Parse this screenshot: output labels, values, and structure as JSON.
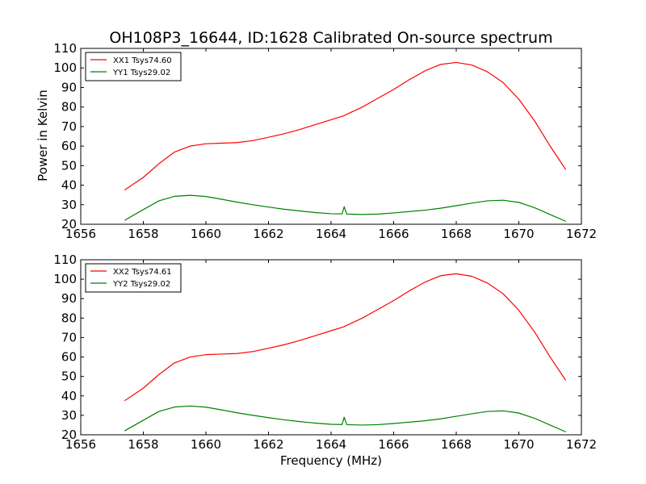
{
  "title": "OH108P3_16644, ID:1628 Calibrated On-source spectrum",
  "xlabel": "Frequency (MHz)",
  "ylabel": "Power in Kelvin",
  "colors": {
    "xx": "#ff0000",
    "yy": "#008000"
  },
  "chart_data": [
    {
      "type": "line",
      "xlim": [
        1656,
        1672
      ],
      "ylim": [
        20,
        110
      ],
      "xticks": [
        1656,
        1658,
        1660,
        1662,
        1664,
        1666,
        1668,
        1670,
        1672
      ],
      "yticks": [
        20,
        30,
        40,
        50,
        60,
        70,
        80,
        90,
        100,
        110
      ],
      "grid": false,
      "legend_position": "top-left",
      "series": [
        {
          "name": "XX1 Tsys74.60",
          "color": "#ff0000",
          "x": [
            1657.4,
            1658.0,
            1658.5,
            1659.0,
            1659.5,
            1660.0,
            1660.5,
            1661.0,
            1661.5,
            1662.0,
            1662.5,
            1663.0,
            1663.5,
            1664.0,
            1664.4,
            1665.0,
            1665.5,
            1666.0,
            1666.5,
            1667.0,
            1667.5,
            1668.0,
            1668.5,
            1669.0,
            1669.5,
            1670.0,
            1670.5,
            1671.0,
            1671.5
          ],
          "y": [
            37.5,
            44,
            51,
            57,
            60,
            61.2,
            61.5,
            61.8,
            62.8,
            64.5,
            66.3,
            68.5,
            71,
            73.5,
            75.5,
            80,
            84.5,
            89,
            94,
            98.5,
            101.8,
            102.8,
            101.5,
            98,
            92.5,
            84,
            73,
            60,
            48
          ]
        },
        {
          "name": "YY1 Tsys29.02",
          "color": "#008000",
          "x": [
            1657.4,
            1658.0,
            1658.5,
            1659.0,
            1659.5,
            1660.0,
            1660.5,
            1661.0,
            1661.5,
            1662.0,
            1662.5,
            1663.0,
            1663.5,
            1664.0,
            1664.35,
            1664.42,
            1664.5,
            1665.0,
            1665.5,
            1666.0,
            1666.5,
            1667.0,
            1667.5,
            1668.0,
            1668.5,
            1669.0,
            1669.5,
            1670.0,
            1670.5,
            1671.0,
            1671.5
          ],
          "y": [
            22,
            27.5,
            32,
            34.3,
            34.8,
            34.2,
            32.8,
            31.3,
            30,
            28.8,
            27.7,
            26.8,
            26,
            25.4,
            25.3,
            29,
            25.2,
            25,
            25.2,
            25.8,
            26.5,
            27.2,
            28.2,
            29.5,
            30.8,
            32,
            32.3,
            31.2,
            28.5,
            25,
            21.5
          ]
        }
      ]
    },
    {
      "type": "line",
      "xlim": [
        1656,
        1672
      ],
      "ylim": [
        20,
        110
      ],
      "xticks": [
        1656,
        1658,
        1660,
        1662,
        1664,
        1666,
        1668,
        1670,
        1672
      ],
      "yticks": [
        20,
        30,
        40,
        50,
        60,
        70,
        80,
        90,
        100,
        110
      ],
      "grid": false,
      "legend_position": "top-left",
      "series": [
        {
          "name": "XX2 Tsys74.61",
          "color": "#ff0000",
          "x": [
            1657.4,
            1658.0,
            1658.5,
            1659.0,
            1659.5,
            1660.0,
            1660.5,
            1661.0,
            1661.5,
            1662.0,
            1662.5,
            1663.0,
            1663.5,
            1664.0,
            1664.4,
            1665.0,
            1665.5,
            1666.0,
            1666.5,
            1667.0,
            1667.5,
            1668.0,
            1668.5,
            1669.0,
            1669.5,
            1670.0,
            1670.5,
            1671.0,
            1671.5
          ],
          "y": [
            37.5,
            44,
            51,
            57,
            60,
            61.2,
            61.5,
            61.8,
            62.8,
            64.5,
            66.3,
            68.5,
            71,
            73.5,
            75.5,
            80,
            84.5,
            89,
            94,
            98.5,
            101.8,
            102.8,
            101.5,
            98,
            92.5,
            84,
            73,
            60,
            48
          ]
        },
        {
          "name": "YY2 Tsys29.02",
          "color": "#008000",
          "x": [
            1657.4,
            1658.0,
            1658.5,
            1659.0,
            1659.5,
            1660.0,
            1660.5,
            1661.0,
            1661.5,
            1662.0,
            1662.5,
            1663.0,
            1663.5,
            1664.0,
            1664.35,
            1664.42,
            1664.5,
            1665.0,
            1665.5,
            1666.0,
            1666.5,
            1667.0,
            1667.5,
            1668.0,
            1668.5,
            1669.0,
            1669.5,
            1670.0,
            1670.5,
            1671.0,
            1671.5
          ],
          "y": [
            22,
            27.5,
            32,
            34.3,
            34.8,
            34.2,
            32.8,
            31.3,
            30,
            28.8,
            27.7,
            26.8,
            26,
            25.4,
            25.3,
            29,
            25.2,
            25,
            25.2,
            25.8,
            26.5,
            27.2,
            28.2,
            29.5,
            30.8,
            32,
            32.3,
            31.2,
            28.5,
            25,
            21.5
          ]
        }
      ]
    }
  ]
}
